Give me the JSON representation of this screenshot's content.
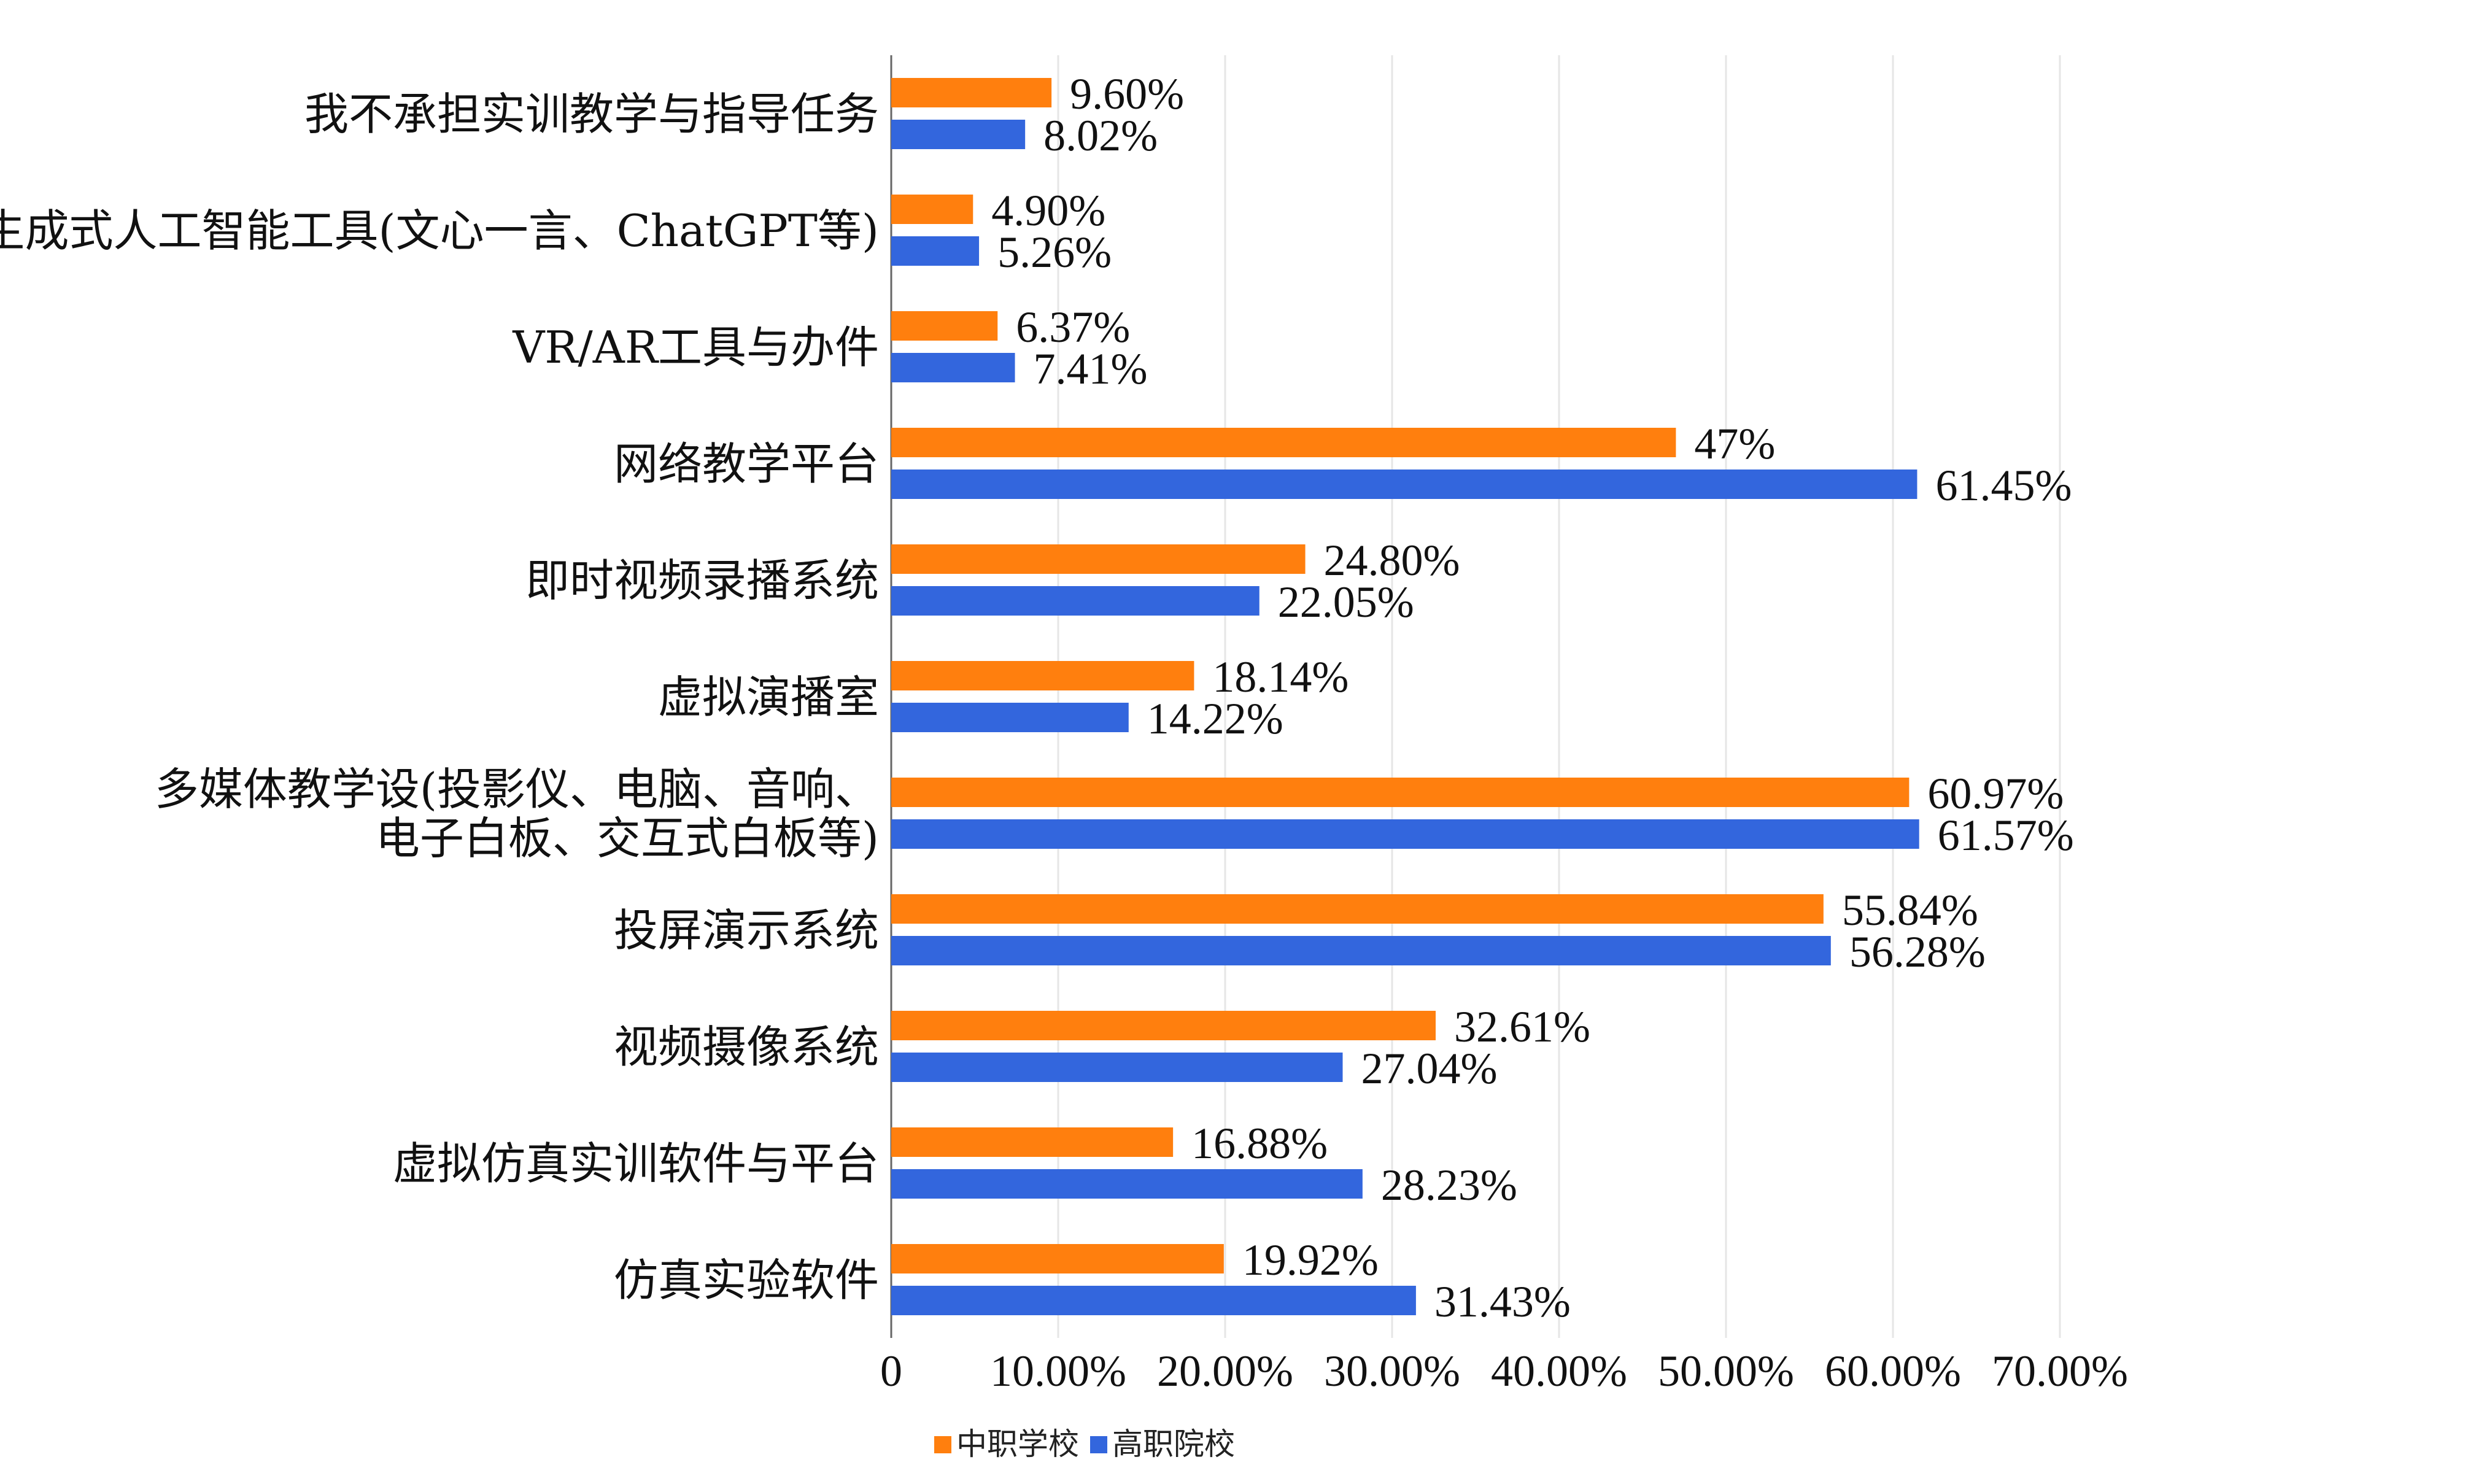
{
  "chart_data": {
    "type": "bar",
    "orientation": "horizontal",
    "categories": [
      [
        "我不承担实训教学与指导任务"
      ],
      [
        "生成式人工智能工具(文心一言、ChatGPT等)"
      ],
      [
        "VR/AR工具与办件"
      ],
      [
        "网络教学平台"
      ],
      [
        "即时视频录播系统"
      ],
      [
        "虚拟演播室"
      ],
      [
        "多媒体教学设(投影仪、电脑、音响、",
        "电子白板、交互式白板等)"
      ],
      [
        "投屏演示系统"
      ],
      [
        "视频摄像系统"
      ],
      [
        "虚拟仿真实训软件与平台"
      ],
      [
        "仿真实验软件"
      ]
    ],
    "series": [
      {
        "name": "中职学校",
        "color": "#FF7F0E",
        "values": [
          9.6,
          4.9,
          6.37,
          47,
          24.8,
          18.14,
          60.97,
          55.84,
          32.61,
          16.88,
          19.92
        ],
        "labels": [
          "9.60%",
          "4.90%",
          "6.37%",
          "47%",
          "24.80%",
          "18.14%",
          "60.97%",
          "55.84%",
          "32.61%",
          "16.88%",
          "19.92%"
        ]
      },
      {
        "name": "高职院校",
        "color": "#3366DD",
        "values": [
          8.02,
          5.26,
          7.41,
          61.45,
          22.05,
          14.22,
          61.57,
          56.28,
          27.04,
          28.23,
          31.43
        ],
        "labels": [
          "8.02%",
          "5.26%",
          "7.41%",
          "61.45%",
          "22.05%",
          "14.22%",
          "61.57%",
          "56.28%",
          "27.04%",
          "28.23%",
          "31.43%"
        ]
      }
    ],
    "x_ticks": [
      "0",
      "10.00%",
      "20.00%",
      "30.00%",
      "40.00%",
      "50.00%",
      "60.00%",
      "70.00%"
    ],
    "xlim": [
      0,
      70
    ],
    "grid": true,
    "legend_position": "bottom"
  }
}
